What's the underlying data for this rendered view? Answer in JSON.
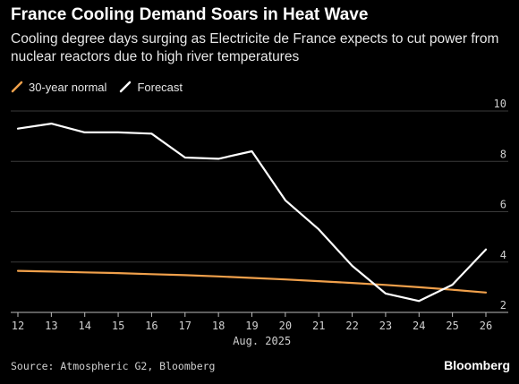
{
  "title": "France Cooling Demand Soars in Heat Wave",
  "subtitle": "Cooling degree days surging as Electricite de France expects to cut power from nuclear reactors due to high river temperatures",
  "source": "Source: Atmospheric G2, Bloomberg",
  "brand": "Bloomberg",
  "colors": {
    "background": "#000000",
    "normal": "#f0a04b",
    "forecast": "#ffffff",
    "grid": "#3a3a3a"
  },
  "chart_data": {
    "type": "line",
    "x": [
      12,
      13,
      14,
      15,
      16,
      17,
      18,
      19,
      20,
      21,
      22,
      23,
      24,
      25,
      26
    ],
    "x_tick_labels": [
      "12",
      "13",
      "14",
      "15",
      "16",
      "17",
      "18",
      "19",
      "20",
      "21",
      "22",
      "23",
      "24",
      "25",
      "26"
    ],
    "xlabel": "Aug. 2025",
    "ylim": [
      2,
      10
    ],
    "y_ticks": [
      2,
      4,
      6,
      8,
      10
    ],
    "grid": true,
    "y_axis_side": "right",
    "legend_position": "top-left",
    "series": [
      {
        "name": "30-year normal",
        "color": "#f0a04b",
        "values": [
          3.65,
          3.62,
          3.59,
          3.56,
          3.52,
          3.48,
          3.43,
          3.37,
          3.31,
          3.24,
          3.17,
          3.09,
          3.0,
          2.9,
          2.79
        ]
      },
      {
        "name": "Forecast",
        "color": "#ffffff",
        "values": [
          9.3,
          9.5,
          9.15,
          9.15,
          9.1,
          8.15,
          8.1,
          8.4,
          6.45,
          5.3,
          3.85,
          2.75,
          2.45,
          3.1,
          4.5
        ]
      }
    ]
  }
}
